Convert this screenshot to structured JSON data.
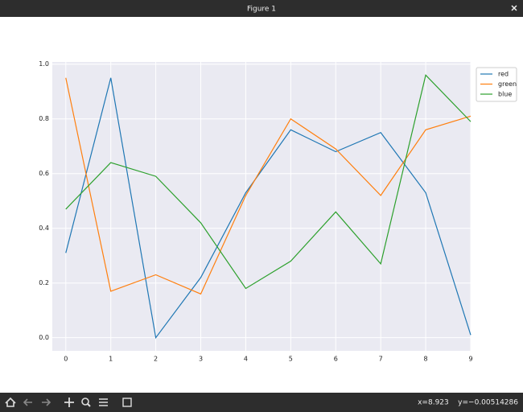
{
  "window": {
    "title": "Figure 1",
    "status": "x=8.923    y=−0.00514286"
  },
  "chart_data": {
    "type": "line",
    "x": [
      0,
      1,
      2,
      3,
      4,
      5,
      6,
      7,
      8,
      9
    ],
    "series": [
      {
        "name": "red",
        "color": "#1f77b4",
        "values": [
          0.31,
          0.95,
          0.0,
          0.22,
          0.53,
          0.76,
          0.68,
          0.75,
          0.53,
          0.01
        ]
      },
      {
        "name": "green",
        "color": "#ff7f0e",
        "values": [
          0.95,
          0.17,
          0.23,
          0.16,
          0.52,
          0.8,
          0.69,
          0.52,
          0.76,
          0.81
        ]
      },
      {
        "name": "blue",
        "color": "#2ca02c",
        "values": [
          0.47,
          0.64,
          0.59,
          0.42,
          0.18,
          0.28,
          0.46,
          0.27,
          0.96,
          0.79
        ]
      }
    ],
    "xlim": [
      -0.3,
      9
    ],
    "ylim": [
      -0.048,
      1.008
    ],
    "xticks": [
      0,
      1,
      2,
      3,
      4,
      5,
      6,
      7,
      8,
      9
    ],
    "yticks": [
      {
        "value": 0,
        "label": "0.0"
      },
      {
        "value": 0.2,
        "label": "0.2"
      },
      {
        "value": 0.4,
        "label": "0.4"
      },
      {
        "value": 0.6,
        "label": "0.6"
      },
      {
        "value": 0.8,
        "label": "0.8"
      },
      {
        "value": 1,
        "label": "1.0"
      }
    ],
    "grid": true,
    "legend": "outside-right"
  }
}
